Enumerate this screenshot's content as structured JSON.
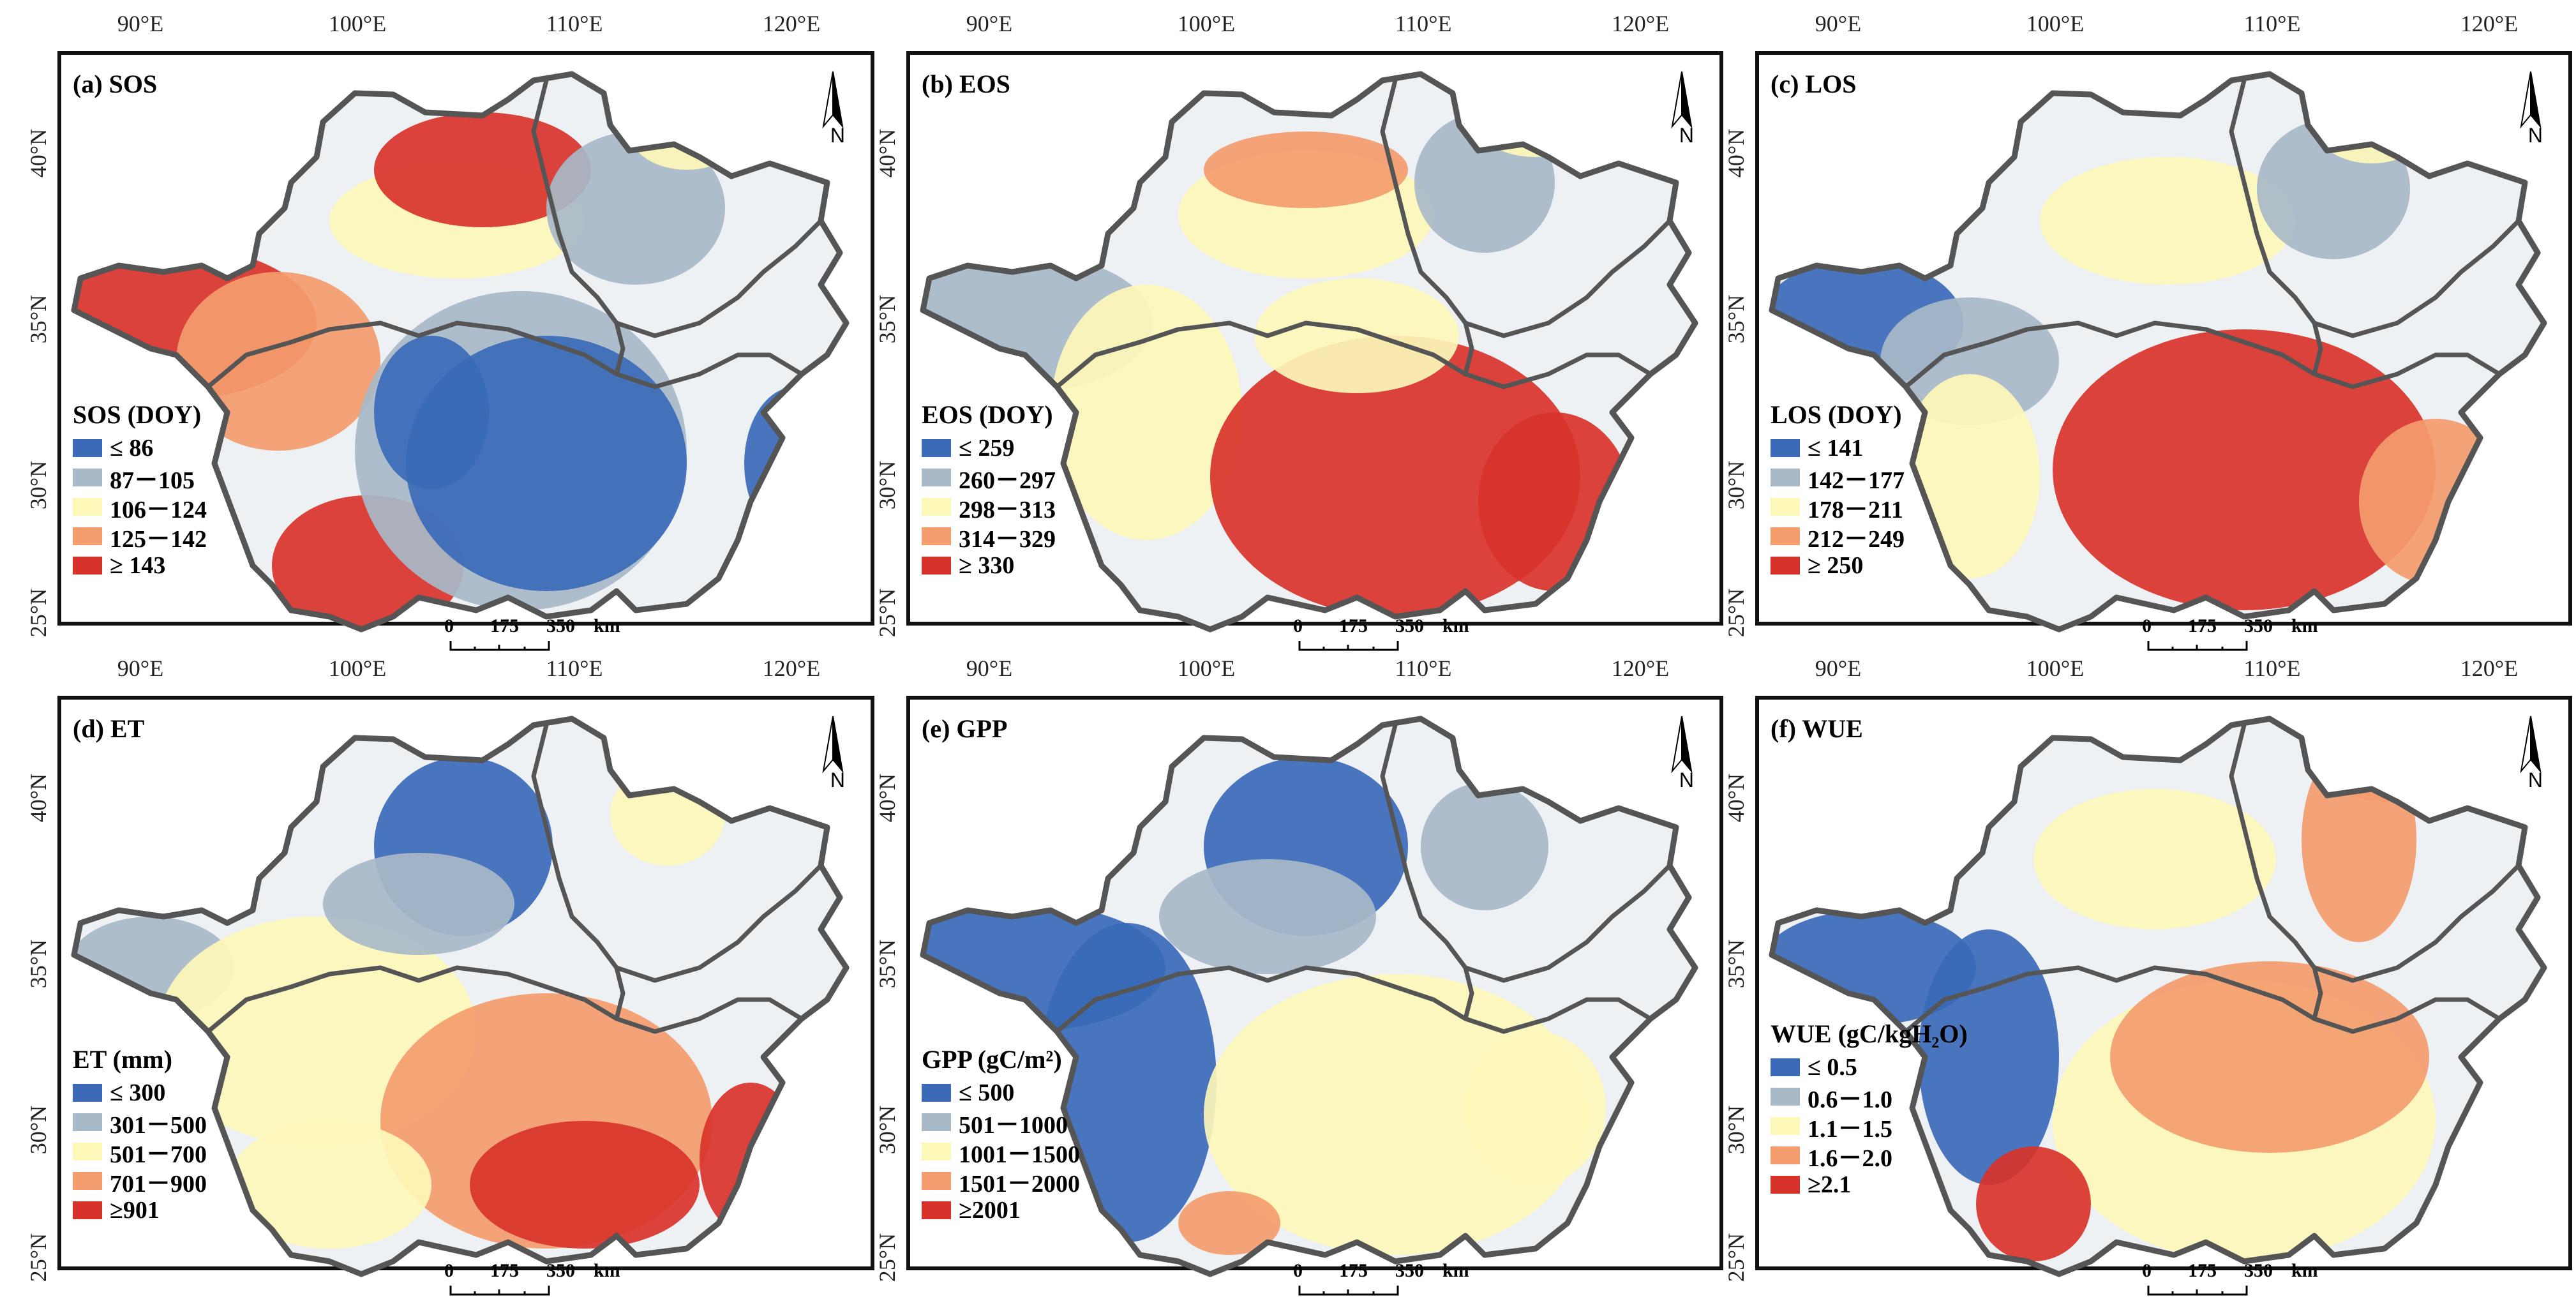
{
  "axes": {
    "lon_labels": [
      "90°E",
      "100°E",
      "110°E",
      "120°E"
    ],
    "lat_labels": [
      "40°N",
      "35°N",
      "30°N",
      "25°N"
    ]
  },
  "colors": {
    "c1": "#3a6ab8",
    "c2": "#a8b9c8",
    "c3": "#fdf7b8",
    "c4": "#f49c6e",
    "c5": "#d8332a",
    "boundary": "#555555"
  },
  "north_label": "N",
  "scale_bar": {
    "labels": [
      "0",
      "175",
      "350",
      "km"
    ]
  },
  "panels": [
    {
      "title": "(a) SOS",
      "legend_title": "SOS (DOY)",
      "legend": [
        "≤ 86",
        "87－105",
        "106－124",
        "125－142",
        "≥ 143"
      ]
    },
    {
      "title": "(b) EOS",
      "legend_title": "EOS (DOY)",
      "legend": [
        "≤ 259",
        "260－297",
        "298－313",
        "314－329",
        "≥ 330"
      ]
    },
    {
      "title": "(c) LOS",
      "legend_title": "LOS (DOY)",
      "legend": [
        "≤ 141",
        "142－177",
        "178－211",
        "212－249",
        "≥ 250"
      ]
    },
    {
      "title": "(d) ET",
      "legend_title": "ET (mm)",
      "legend": [
        "≤ 300",
        "301－500",
        "501－700",
        "701－900",
        "≥901"
      ]
    },
    {
      "title": "(e) GPP",
      "legend_title": "GPP (gC/m²)",
      "legend": [
        "≤ 500",
        "501－1000",
        "1001－1500",
        "1501－2000",
        "≥2001"
      ]
    },
    {
      "title": "(f) WUE",
      "legend_title": "WUE (gC/kgH₂O)",
      "legend": [
        "≤ 0.5",
        "0.6－1.0",
        "1.1－1.5",
        "1.6－2.0",
        "≥2.1"
      ]
    }
  ]
}
